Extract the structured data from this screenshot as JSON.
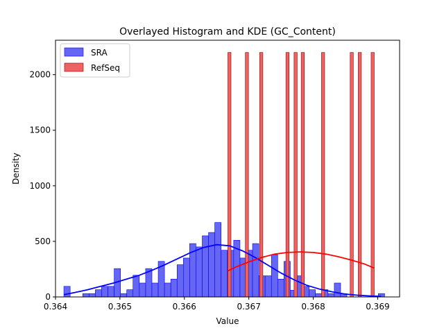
{
  "chart_data": {
    "type": "bar",
    "title": "Overlayed Histogram and KDE (GC_Content)",
    "xlabel": "Value",
    "ylabel": "Density",
    "xlim": [
      0.364,
      0.36934
    ],
    "ylim": [
      0,
      2310
    ],
    "xticks": [
      0.364,
      0.365,
      0.366,
      0.367,
      0.368,
      0.369
    ],
    "xtick_labels": [
      "0.364",
      "0.365",
      "0.366",
      "0.367",
      "0.368",
      "0.369"
    ],
    "yticks": [
      0,
      500,
      1000,
      1500,
      2000
    ],
    "ytick_labels": [
      "0",
      "500",
      "1000",
      "1500",
      "2000"
    ],
    "grid": false,
    "legend_position": "top-left",
    "series": [
      {
        "name": "SRA",
        "color": "#0000ff",
        "fill": "#6666f5",
        "bin_width": 9.76e-05,
        "bin_starts": [
          0.36413,
          0.364227,
          0.364325,
          0.364423,
          0.36452,
          0.364618,
          0.364715,
          0.364813,
          0.364911,
          0.365008,
          0.365106,
          0.365203,
          0.365301,
          0.365399,
          0.365496,
          0.365594,
          0.365691,
          0.365789,
          0.365887,
          0.365984,
          0.366082,
          0.366179,
          0.366277,
          0.366375,
          0.366472,
          0.36657,
          0.366667,
          0.366765,
          0.366863,
          0.36696,
          0.367058,
          0.367155,
          0.367253,
          0.367351,
          0.367448,
          0.367546,
          0.367643,
          0.367741,
          0.367839,
          0.367936,
          0.368034,
          0.368131,
          0.368229,
          0.368327,
          0.368424,
          0.368522,
          0.368619,
          0.368717,
          0.368815,
          0.368912,
          0.36901
        ],
        "values": [
          95,
          0,
          0,
          30,
          30,
          65,
          95,
          95,
          255,
          30,
          65,
          195,
          125,
          255,
          125,
          320,
          125,
          160,
          290,
          350,
          480,
          450,
          550,
          580,
          670,
          420,
          420,
          510,
          350,
          420,
          480,
          190,
          190,
          380,
          160,
          320,
          60,
          190,
          95,
          65,
          30,
          65,
          30,
          125,
          30,
          0,
          0,
          0,
          0,
          0,
          30
        ],
        "kde": {
          "x": [
            0.36413,
            0.3643,
            0.3645,
            0.3647,
            0.3649,
            0.3651,
            0.3653,
            0.3655,
            0.3657,
            0.3659,
            0.3661,
            0.3663,
            0.3665,
            0.3667,
            0.3669,
            0.3671,
            0.3673,
            0.3675,
            0.3677,
            0.3679,
            0.3681,
            0.3683,
            0.3685,
            0.3687,
            0.3689,
            0.36905
          ],
          "y": [
            20,
            40,
            65,
            95,
            125,
            160,
            195,
            240,
            290,
            345,
            400,
            445,
            470,
            460,
            415,
            355,
            285,
            215,
            155,
            105,
            70,
            45,
            25,
            15,
            8,
            5
          ]
        }
      },
      {
        "name": "RefSeq",
        "color": "#8b0000",
        "fill": "#f06262",
        "kde_color": "#ff0000",
        "bin_width": 4.88e-05,
        "bin_starts": [
          0.366675,
          0.366946,
          0.367169,
          0.367576,
          0.367702,
          0.367813,
          0.368128,
          0.368573,
          0.368698,
          0.368898
        ],
        "values": [
          2200,
          2200,
          2200,
          2200,
          2200,
          2200,
          2200,
          2200,
          2200,
          2200
        ],
        "kde": {
          "x": [
            0.366675,
            0.3668,
            0.367,
            0.3672,
            0.3674,
            0.3676,
            0.3678,
            0.368,
            0.3682,
            0.3684,
            0.3686,
            0.3688,
            0.368945
          ],
          "y": [
            235,
            270,
            315,
            355,
            385,
            400,
            405,
            400,
            385,
            360,
            330,
            295,
            260
          ]
        }
      }
    ]
  }
}
